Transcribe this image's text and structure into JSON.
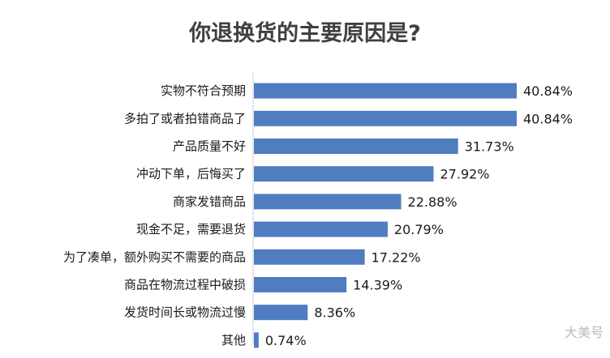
{
  "chart_data": {
    "type": "bar",
    "orientation": "horizontal",
    "title": "你退换货的主要原因是?",
    "categories": [
      "实物不符合预期",
      "多拍了或者拍错商品了",
      "产品质量不好",
      "冲动下单，后悔买了",
      "商家发错商品",
      "现金不足，需要退货",
      "为了凑单，额外购买不需要的商品",
      "商品在物流过程中破损",
      "发货时间长或物流过慢",
      "其他"
    ],
    "values": [
      40.84,
      40.84,
      31.73,
      27.92,
      22.88,
      20.79,
      17.22,
      14.39,
      8.36,
      0.74
    ],
    "value_labels": [
      "40.84%",
      "40.84%",
      "31.73%",
      "27.92%",
      "22.88%",
      "20.79%",
      "17.22%",
      "14.39%",
      "8.36%",
      "0.74%"
    ],
    "xlim": [
      0,
      40.84
    ],
    "grid": false,
    "legend": "none",
    "bar_color": "#4f7dc0"
  },
  "watermark": "大美号"
}
